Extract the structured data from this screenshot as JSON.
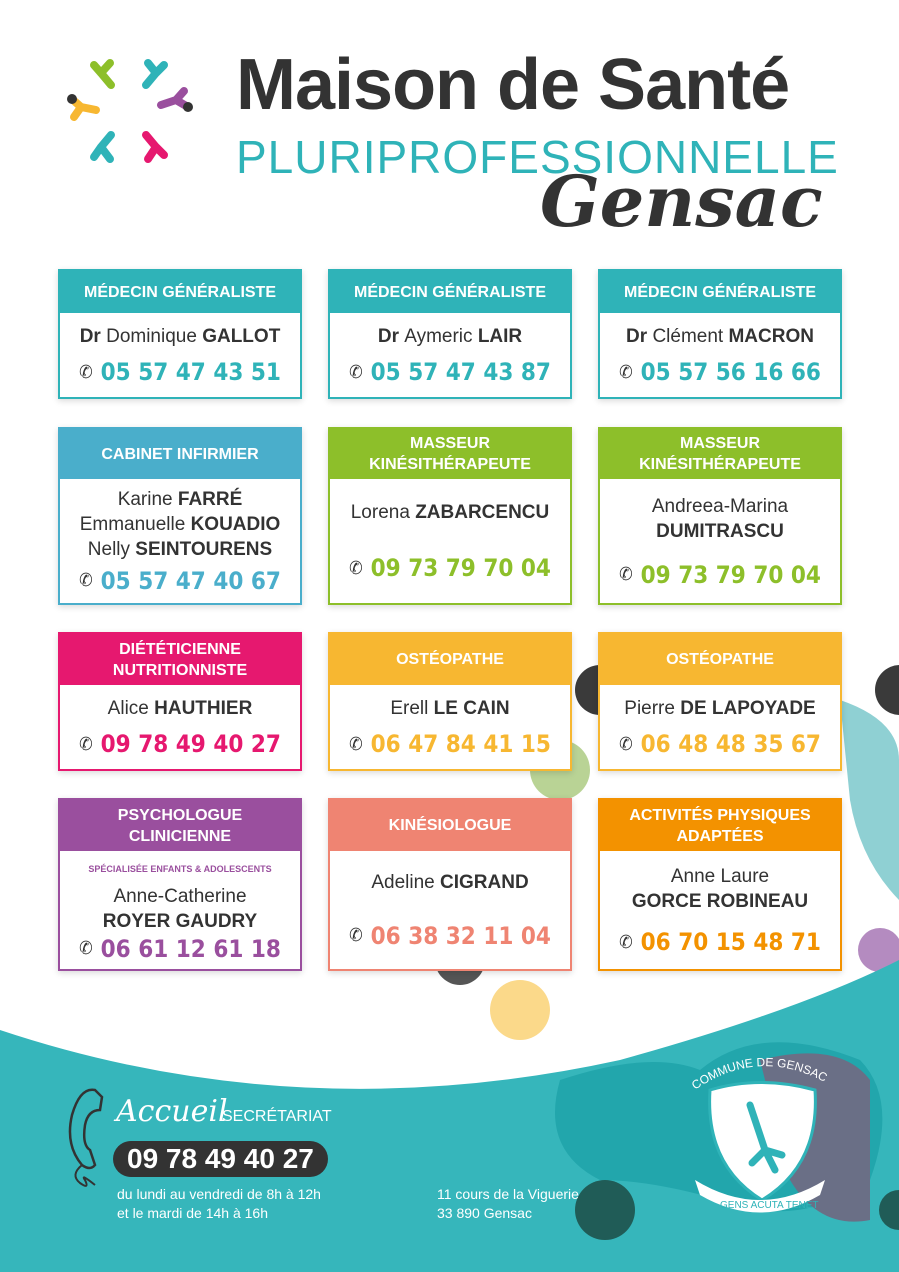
{
  "header": {
    "title": "Maison de Santé",
    "subtitle": "PLURIPROFESSIONNELLE",
    "town": "Gensac"
  },
  "colors": {
    "teal": "#2fb3b8",
    "dark": "#333333"
  },
  "cards": [
    {
      "title": "MÉDECIN GÉNÉRALISTE",
      "color": "#2fb3b8",
      "names": [
        [
          "Dr ",
          "Dominique ",
          "GALLOT"
        ]
      ],
      "phone": "05 57 47 43 51"
    },
    {
      "title": "MÉDECIN GÉNÉRALISTE",
      "color": "#2fb3b8",
      "names": [
        [
          "Dr ",
          "Aymeric ",
          "LAIR"
        ]
      ],
      "phone": "05 57 47 43 87"
    },
    {
      "title": "MÉDECIN GÉNÉRALISTE",
      "color": "#2fb3b8",
      "names": [
        [
          "Dr ",
          "Clément ",
          "MACRON"
        ]
      ],
      "phone": "05 57 56 16 66"
    },
    {
      "title": "CABINET INFIRMIER",
      "color": "#4aaecb",
      "names": [
        [
          "",
          "Karine ",
          "FARRÉ"
        ],
        [
          "",
          "Emmanuelle ",
          "KOUADIO"
        ],
        [
          "",
          "Nelly ",
          "SEINTOURENS"
        ]
      ],
      "phone": "05 57 47 40 67"
    },
    {
      "title": "MASSEUR KINÉSITHÉRAPEUTE",
      "color": "#8dbf2a",
      "names": [
        [
          "",
          "Lorena ",
          "ZABARCENCU"
        ]
      ],
      "phone": "09 73 79 70 04"
    },
    {
      "title": "MASSEUR KINÉSITHÉRAPEUTE",
      "color": "#8dbf2a",
      "names": [
        [
          "",
          "Andreea-Marina",
          ""
        ],
        [
          "",
          "",
          "DUMITRASCU"
        ]
      ],
      "phone": "09 73 79 70 04"
    },
    {
      "title": "DIÉTÉTICIENNE NUTRITIONNISTE",
      "color": "#e6186f",
      "names": [
        [
          "",
          "Alice ",
          "HAUTHIER"
        ]
      ],
      "phone": "09 78 49 40 27"
    },
    {
      "title": "OSTÉOPATHE",
      "color": "#f7b731",
      "names": [
        [
          "",
          "Erell ",
          "LE CAIN"
        ]
      ],
      "phone": "06 47 84 41 15"
    },
    {
      "title": "OSTÉOPATHE",
      "color": "#f7b731",
      "names": [
        [
          "",
          "Pierre ",
          "DE LAPOYADE"
        ]
      ],
      "phone": "06 48 48 35 67"
    },
    {
      "title": "PSYCHOLOGUE CLINICIENNE",
      "color": "#9a4f9e",
      "subtitle": "SPÉCIALISÉE ENFANTS & ADOLESCENTS",
      "names": [
        [
          "",
          "Anne-Catherine",
          ""
        ],
        [
          "",
          "",
          "ROYER GAUDRY"
        ]
      ],
      "phone": "06 61 12 61 18"
    },
    {
      "title": "KINÉSIOLOGUE",
      "color": "#ef8472",
      "names": [
        [
          "",
          "Adeline ",
          "CIGRAND"
        ]
      ],
      "phone": "06 38 32 11 04"
    },
    {
      "title": "ACTIVITÉS PHYSIQUES ADAPTÉES",
      "color": "#f39200",
      "names": [
        [
          "",
          "Anne Laure",
          ""
        ],
        [
          "",
          "",
          "GORCE ROBINEAU"
        ]
      ],
      "phone": "06 70 15 48 71"
    }
  ],
  "footer": {
    "accueil": "Accueil",
    "secretariat": "SECRÉTARIAT",
    "phone": "09 78 49 40 27",
    "hours_1": "du lundi au vendredi de 8h à 12h",
    "hours_2": "et le mardi de 14h à 16h",
    "address_1": "11 cours de la Viguerie",
    "address_2": "33 890 Gensac"
  },
  "seal": {
    "top": "COMMUNE DE GENSAC",
    "motto": "GENS ACUTA TENET"
  }
}
